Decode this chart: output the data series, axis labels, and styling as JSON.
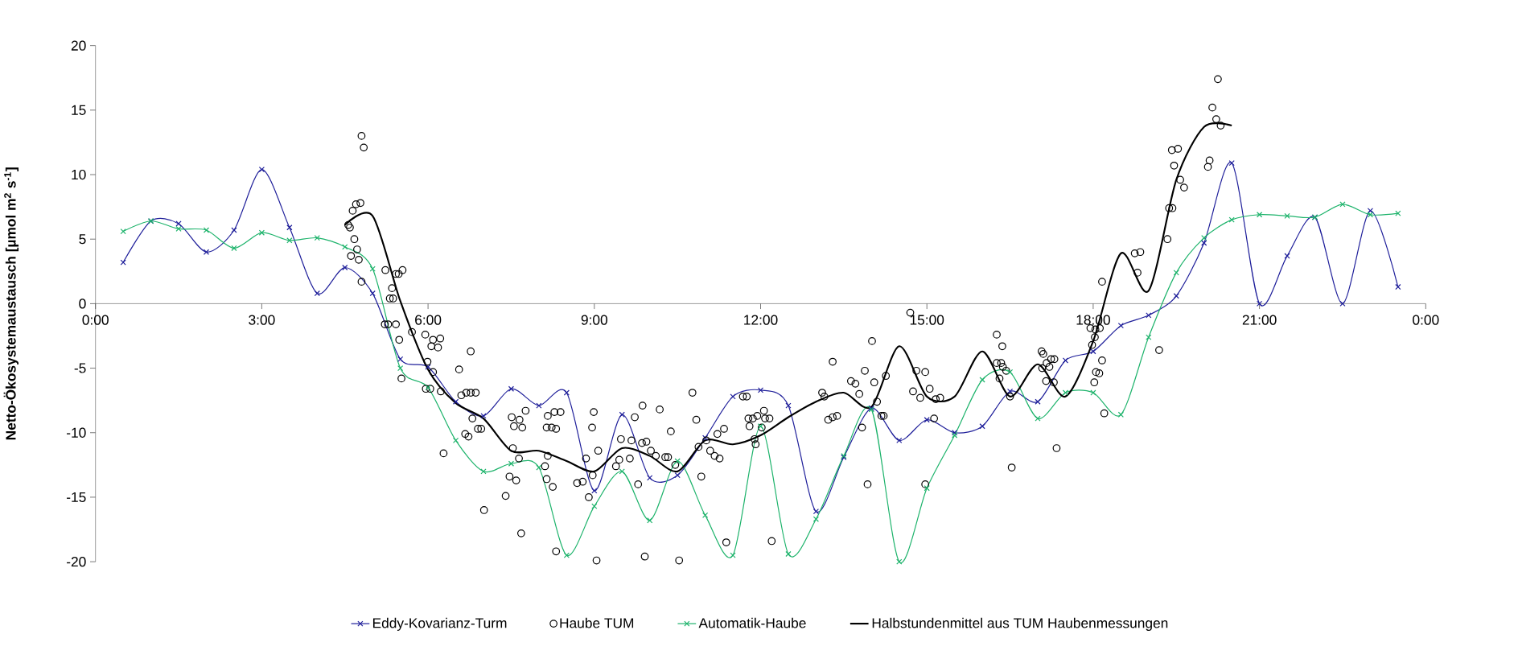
{
  "chart_data": {
    "type": "line",
    "ylabel": "Netto-Ökosystemaustausch [µmol m$^{2}$ s$^{-1}$]",
    "xlim": [
      0,
      24
    ],
    "ylim": [
      -20,
      20
    ],
    "xticks": [
      {
        "value": 0,
        "label": "0:00"
      },
      {
        "value": 3,
        "label": "3:00"
      },
      {
        "value": 6,
        "label": "6:00"
      },
      {
        "value": 9,
        "label": "9:00"
      },
      {
        "value": 12,
        "label": "12:00"
      },
      {
        "value": 15,
        "label": "15:00"
      },
      {
        "value": 18,
        "label": "18:00"
      },
      {
        "value": 21,
        "label": "21:00"
      },
      {
        "value": 24,
        "label": "0:00"
      }
    ],
    "yticks": [
      -20,
      -15,
      -10,
      -5,
      0,
      5,
      10,
      15,
      20
    ],
    "legend": "bottom",
    "series": [
      {
        "name": "Eddy-Kovarianz-Turm",
        "marker": "cross",
        "color": "#1f1f9a",
        "x": [
          0.5,
          1,
          1.5,
          2,
          2.5,
          3,
          3.5,
          4,
          4.5,
          5,
          5.5,
          6,
          6.5,
          7,
          7.5,
          8,
          8.5,
          9,
          9.5,
          10,
          10.5,
          11,
          11.5,
          12,
          12.5,
          13,
          13.5,
          14,
          14.5,
          15,
          15.5,
          16,
          16.5,
          17,
          17.5,
          18,
          18.5,
          19,
          19.5,
          20,
          20.5,
          21,
          21.5,
          22,
          22.5,
          23,
          23.5
        ],
        "values": [
          3.2,
          6.4,
          6.2,
          4.0,
          5.7,
          10.4,
          5.9,
          0.8,
          2.8,
          0.8,
          -4.3,
          -4.9,
          -7.6,
          -8.7,
          -6.6,
          -7.9,
          -6.9,
          -14.5,
          -8.6,
          -13.5,
          -13.3,
          -10.4,
          -7.2,
          -6.7,
          -7.9,
          -16.1,
          -11.9,
          -8.1,
          -10.6,
          -9.0,
          -10.0,
          -9.5,
          -6.8,
          -7.6,
          -4.4,
          -3.7,
          -1.7,
          -0.9,
          0.6,
          4.7,
          10.9,
          0.0,
          3.7,
          6.7,
          0.0,
          7.2,
          1.3
        ]
      },
      {
        "name": "Haube TUM",
        "type": "scatter",
        "marker": "circle",
        "color": "#000000",
        "x": [
          4.8,
          4.84,
          4.64,
          4.7,
          4.78,
          4.56,
          4.59,
          4.67,
          4.72,
          4.61,
          4.75,
          4.8,
          5.23,
          5.42,
          5.47,
          5.54,
          5.35,
          5.31,
          5.37,
          5.22,
          5.28,
          5.42,
          5.48,
          5.95,
          6.09,
          6.22,
          6.18,
          6.06,
          5.71,
          6.77,
          6.56,
          5.99,
          6.09,
          5.52,
          5.96,
          6.04,
          6.23,
          6.6,
          6.69,
          6.77,
          6.86,
          6.8,
          6.9,
          6.96,
          6.67,
          6.73,
          6.28,
          7.01,
          7.53,
          7.64,
          7.51,
          7.55,
          7.65,
          7.7,
          7.76,
          7.47,
          7.59,
          7.4,
          7.68,
          8.16,
          8.28,
          8.14,
          8.23,
          8.31,
          8.16,
          8.11,
          8.14,
          8.25,
          8.31,
          8.39,
          9.04,
          8.99,
          8.96,
          9.07,
          8.85,
          8.97,
          8.69,
          8.79,
          8.9,
          9.39,
          9.45,
          9.48,
          9.64,
          9.67,
          9.73,
          9.79,
          9.87,
          9.91,
          9.86,
          9.94,
          10.02,
          10.11,
          10.18,
          10.28,
          10.33,
          10.38,
          10.46,
          10.53,
          10.77,
          10.84,
          10.93,
          10.88,
          11.02,
          11.09,
          11.22,
          11.34,
          11.26,
          11.17,
          11.38,
          11.68,
          11.75,
          11.78,
          11.86,
          11.94,
          12.06,
          12.08,
          12.16,
          11.8,
          12.02,
          11.89,
          11.91,
          12.2,
          13.11,
          13.15,
          13.3,
          13.22,
          13.3,
          13.38,
          13.63,
          13.71,
          13.78,
          13.88,
          14.01,
          14.05,
          14.1,
          13.83,
          13.93,
          14.18,
          14.22,
          14.26,
          14.7,
          14.81,
          14.97,
          14.75,
          14.88,
          15.05,
          15.16,
          15.24,
          15.13,
          14.97,
          16.26,
          16.36,
          16.26,
          16.34,
          16.37,
          16.43,
          16.31,
          16.5,
          16.53,
          17.07,
          17.1,
          17.16,
          17.24,
          17.3,
          17.08,
          17.21,
          17.15,
          17.29,
          17.34,
          17.95,
          18.04,
          18.12,
          18.03,
          17.98,
          18.16,
          18.16,
          18.05,
          18.11,
          18.02,
          18.2,
          18.8,
          18.75,
          18.85,
          19.19,
          19.34,
          19.37,
          19.43,
          19.42,
          19.53,
          19.46,
          19.57,
          19.64,
          20.07,
          20.1,
          20.15,
          20.22,
          20.3,
          20.25
        ],
        "values": [
          13.0,
          12.1,
          7.2,
          7.7,
          7.8,
          6.1,
          5.9,
          5.0,
          4.2,
          3.7,
          3.4,
          1.7,
          2.6,
          2.3,
          2.3,
          2.6,
          1.2,
          0.4,
          0.4,
          -1.6,
          -1.6,
          -1.6,
          -2.8,
          -2.4,
          -2.8,
          -2.7,
          -3.4,
          -3.3,
          -2.2,
          -3.7,
          -5.1,
          -4.5,
          -5.3,
          -5.8,
          -6.6,
          -6.6,
          -6.8,
          -7.1,
          -6.9,
          -6.9,
          -6.9,
          -8.9,
          -9.7,
          -9.7,
          -10.1,
          -10.3,
          -11.6,
          -16.0,
          -11.2,
          -12.0,
          -8.8,
          -9.5,
          -9.0,
          -9.6,
          -8.3,
          -13.4,
          -13.7,
          -14.9,
          -17.8,
          -8.7,
          -8.4,
          -9.6,
          -9.6,
          -9.7,
          -11.8,
          -12.6,
          -13.6,
          -14.2,
          -19.2,
          -8.4,
          -19.9,
          -8.4,
          -9.6,
          -11.4,
          -12.0,
          -13.3,
          -13.9,
          -13.8,
          -15.0,
          -12.6,
          -12.1,
          -10.5,
          -12.0,
          -10.6,
          -8.8,
          -14.0,
          -7.9,
          -19.6,
          -10.8,
          -10.7,
          -11.4,
          -11.8,
          -8.2,
          -11.9,
          -11.9,
          -9.9,
          -12.5,
          -19.9,
          -6.9,
          -9.0,
          -13.4,
          -11.1,
          -10.6,
          -11.4,
          -10.1,
          -9.7,
          -12.0,
          -11.8,
          -18.5,
          -7.2,
          -7.2,
          -8.9,
          -8.9,
          -8.7,
          -8.3,
          -8.9,
          -8.9,
          -9.5,
          -9.6,
          -10.5,
          -10.9,
          -18.4,
          -6.9,
          -7.2,
          -4.5,
          -9.0,
          -8.8,
          -8.7,
          -6.0,
          -6.2,
          -7.0,
          -5.2,
          -2.9,
          -6.1,
          -7.6,
          -9.6,
          -14.0,
          -8.7,
          -8.7,
          -5.6,
          -0.7,
          -5.2,
          -5.3,
          -6.8,
          -7.3,
          -6.6,
          -7.4,
          -7.3,
          -8.9,
          -14.0,
          -2.4,
          -3.3,
          -4.6,
          -4.6,
          -4.9,
          -5.2,
          -5.8,
          -7.2,
          -12.7,
          -3.7,
          -3.9,
          -4.6,
          -4.3,
          -4.3,
          -5.0,
          -4.9,
          -6.0,
          -6.1,
          -11.2,
          -1.9,
          -2.0,
          -1.9,
          -2.6,
          -3.2,
          1.7,
          -4.4,
          -5.3,
          -5.4,
          -6.1,
          -8.5,
          2.4,
          3.9,
          4.0,
          -3.6,
          5.0,
          7.4,
          7.4,
          11.9,
          12.0,
          10.7,
          9.6,
          9.0,
          10.6,
          11.1,
          15.2,
          14.3,
          13.8,
          17.4
        ]
      },
      {
        "name": "Automatik-Haube",
        "marker": "cross",
        "color": "#1db36b",
        "x": [
          0.5,
          1,
          1.5,
          2,
          2.5,
          3,
          3.5,
          4,
          4.5,
          5,
          5.5,
          6,
          6.5,
          7,
          7.5,
          8,
          8.5,
          9,
          9.5,
          10,
          10.5,
          11,
          11.5,
          12,
          12.5,
          13,
          13.5,
          14,
          14.5,
          15,
          15.5,
          16,
          16.5,
          17,
          17.5,
          18,
          18.5,
          19,
          19.5,
          20,
          20.5,
          21,
          21.5,
          22,
          22.5,
          23,
          23.5
        ],
        "values": [
          5.6,
          6.4,
          5.8,
          5.7,
          4.3,
          5.5,
          4.9,
          5.1,
          4.4,
          2.7,
          -5.0,
          -6.5,
          -10.6,
          -13.0,
          -12.4,
          -12.7,
          -19.5,
          -15.7,
          -13.0,
          -16.8,
          -12.2,
          -16.4,
          -19.5,
          -9.5,
          -19.4,
          -16.7,
          -11.8,
          -8.2,
          -20.0,
          -14.3,
          -10.2,
          -5.9,
          -5.3,
          -8.9,
          -6.9,
          -6.9,
          -8.6,
          -2.6,
          2.4,
          5.1,
          6.5,
          6.9,
          6.8,
          6.7,
          7.7,
          6.9,
          7.0
        ]
      },
      {
        "name": "Halbstundenmittel aus TUM Haubenmessungen",
        "marker": "none",
        "color": "#000000",
        "x": [
          4.5,
          5,
          5.5,
          6,
          6.5,
          7,
          7.5,
          8,
          8.5,
          9,
          9.5,
          10,
          10.5,
          11,
          11.5,
          12,
          12.5,
          13,
          13.5,
          14,
          14.5,
          15,
          15.5,
          16,
          16.5,
          17,
          17.5,
          18,
          18.5,
          19,
          19.5,
          20,
          20.5
        ],
        "values": [
          6.1,
          6.8,
          0.2,
          -5.1,
          -7.7,
          -8.9,
          -11.4,
          -11.4,
          -12.2,
          -13.0,
          -11.2,
          -11.8,
          -13.0,
          -10.6,
          -10.9,
          -10.2,
          -8.8,
          -7.6,
          -6.9,
          -8.0,
          -3.3,
          -7.2,
          -7.2,
          -3.7,
          -7.2,
          -4.7,
          -7.2,
          -2.9,
          3.9,
          1.0,
          9.6,
          13.7,
          13.8
        ]
      }
    ]
  }
}
